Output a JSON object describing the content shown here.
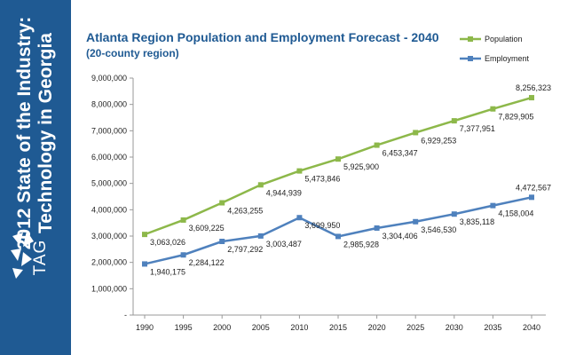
{
  "sidebar": {
    "title_line1": "2012 State of the Industry:",
    "title_line2": "Technology in Georgia",
    "logo_text": "TAG"
  },
  "colors": {
    "sidebar": "#1f5a93",
    "title": "#1f5a93",
    "population": "#8db84a",
    "employment": "#4f81bd"
  },
  "chart_data": {
    "type": "line",
    "title": "Atlanta Region Population and Employment Forecast - 2040",
    "subtitle": "(20-county region)",
    "categories": [
      "1990",
      "1995",
      "2000",
      "2005",
      "2010",
      "2015",
      "2020",
      "2025",
      "2030",
      "2035",
      "2040"
    ],
    "series": [
      {
        "name": "Population",
        "values": [
          3063026,
          3609225,
          4263255,
          4944939,
          5473846,
          5925900,
          6453347,
          6929253,
          7377951,
          7829905,
          8256323
        ],
        "labels": [
          "3,063,026",
          "3,609,225",
          "4,263,255",
          "4,944,939",
          "5,473,846",
          "5,925,900",
          "6,453,347",
          "6,929,253",
          "7,377,951",
          "7,829,905",
          "8,256,323"
        ]
      },
      {
        "name": "Employment",
        "values": [
          1940175,
          2284122,
          2797292,
          3003487,
          3699950,
          2985928,
          3304406,
          3546530,
          3835118,
          4158004,
          4472567
        ],
        "labels": [
          "1,940,175",
          "2,284,122",
          "2,797,292",
          "3,003,487",
          "3,699,950",
          "2,985,928",
          "3,304,406",
          "3,546,530",
          "3,835,118",
          "4,158,004",
          "4,472,567"
        ]
      }
    ],
    "ylim": [
      0,
      9000000
    ],
    "yticks": [
      "-",
      "1,000,000",
      "2,000,000",
      "3,000,000",
      "4,000,000",
      "5,000,000",
      "6,000,000",
      "7,000,000",
      "8,000,000",
      "9,000,000"
    ],
    "grid": false,
    "legend": "top-right"
  }
}
